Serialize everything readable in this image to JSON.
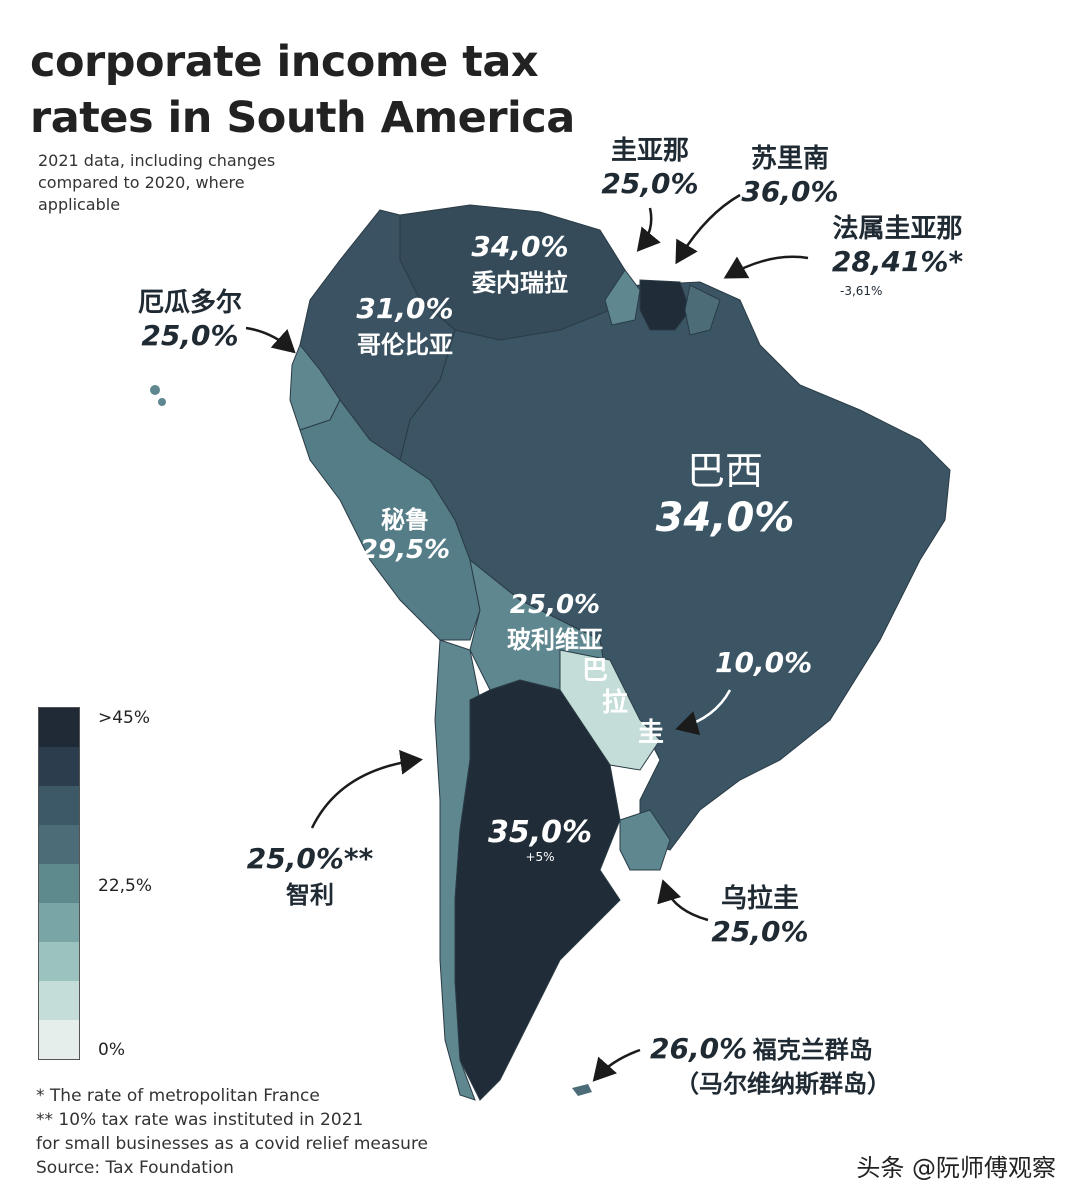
{
  "title_line1": "corporate income tax",
  "title_line2": "rates in South America",
  "subtitle": "2021 data, including changes compared to 2020, where applicable",
  "countries": {
    "guyana": {
      "name": "圭亚那",
      "rate": "25,0%"
    },
    "suriname": {
      "name": "苏里南",
      "rate": "36,0%"
    },
    "french_guiana": {
      "name": "法属圭亚那",
      "rate": "28,41%*",
      "change": "-3,61%"
    },
    "venezuela": {
      "name": "委内瑞拉",
      "rate": "34,0%"
    },
    "colombia": {
      "name": "哥伦比亚",
      "rate": "31,0%"
    },
    "ecuador": {
      "name": "厄瓜多尔",
      "rate": "25,0%"
    },
    "peru": {
      "name": "秘鲁",
      "rate": "29,5%"
    },
    "brazil": {
      "name": "巴西",
      "rate": "34,0%"
    },
    "bolivia": {
      "name": "玻利维亚",
      "rate": "25,0%"
    },
    "paraguay": {
      "name1": "巴",
      "name2": "拉",
      "name3": "圭",
      "rate": "10,0%"
    },
    "argentina": {
      "rate": "35,0%",
      "change": "+5%"
    },
    "chile": {
      "name": "智利",
      "rate": "25,0%**"
    },
    "uruguay": {
      "name": "乌拉圭",
      "rate": "25,0%"
    },
    "falklands": {
      "name": "福克兰群岛",
      "alt_name": "（马尔维纳斯群岛）",
      "rate": "26,0%"
    }
  },
  "legend": {
    "top": ">45%",
    "mid": "22,5%",
    "bottom": "0%",
    "colors": [
      "#1f2a36",
      "#2c3e4d",
      "#3d5866",
      "#4c6d78",
      "#5e8a8e",
      "#7aa5a6",
      "#9bc2be",
      "#c4ddd8",
      "#e6eeec"
    ]
  },
  "notes": {
    "n1": "* The rate of metropolitan France",
    "n2": "** 10% tax rate was instituted in 2021",
    "n3": "for small businesses as a covid relief measure",
    "source": "Source: Tax Foundation"
  },
  "watermark": "头条 @阮师傅观察"
}
